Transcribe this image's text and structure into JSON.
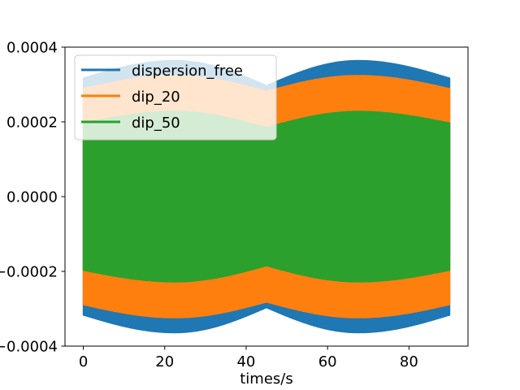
{
  "chart_data": {
    "type": "area",
    "title": "",
    "xlabel": "times/s",
    "ylabel": "",
    "xlim": [
      -4.5,
      94.5
    ],
    "ylim": [
      -0.0004,
      0.0004
    ],
    "x_ticks": [
      0,
      20,
      40,
      60,
      80
    ],
    "x_tick_labels": [
      "0",
      "20",
      "40",
      "60",
      "80"
    ],
    "y_ticks": [
      -0.0004,
      -0.0002,
      0.0,
      0.0002,
      0.0004
    ],
    "y_tick_labels": [
      "−0.0004",
      "−0.0002",
      "0.0000",
      "0.0002",
      "0.0004"
    ],
    "grid": false,
    "legend_position": "top-left",
    "x": [
      0,
      22.5,
      45,
      67.5,
      90
    ],
    "series": [
      {
        "name": "dispersion_free",
        "color": "#1f77b4",
        "values": [
          0.000317,
          0.000364,
          0.000297,
          0.000364,
          0.000317
        ]
      },
      {
        "name": "dip_20",
        "color": "#ff7f0e",
        "values": [
          0.000289,
          0.000324,
          0.000282,
          0.000324,
          0.000289
        ]
      },
      {
        "name": "dip_50",
        "color": "#2ca02c",
        "values": [
          0.000197,
          0.000228,
          0.000185,
          0.000228,
          0.000197
        ]
      }
    ]
  }
}
